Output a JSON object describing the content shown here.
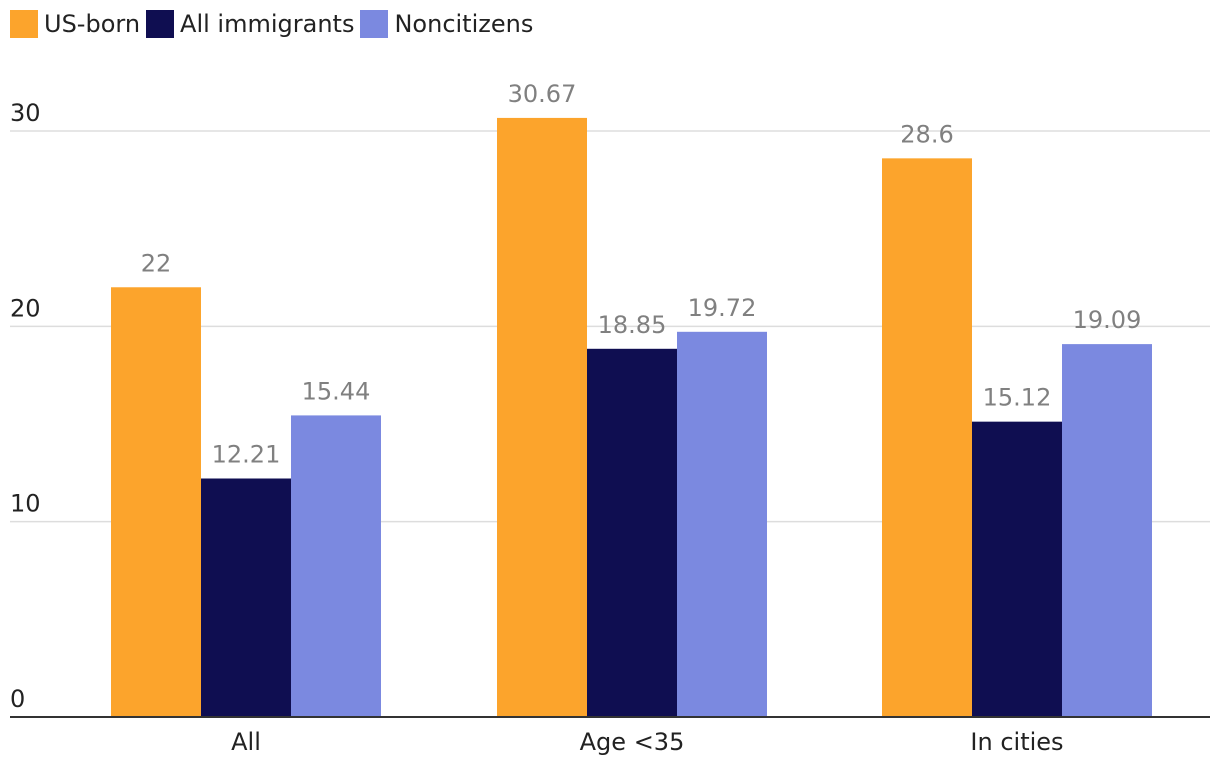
{
  "chart_data": {
    "type": "bar",
    "title": "",
    "xlabel": "",
    "ylabel": "",
    "categories": [
      "All",
      "Age <35",
      "In cities"
    ],
    "series": [
      {
        "name": "US-born",
        "color": "#fca42c",
        "values": [
          22,
          30.67,
          28.6
        ],
        "labels": [
          "22",
          "30.67",
          "28.6"
        ]
      },
      {
        "name": "All immigrants",
        "color": "#0f0e51",
        "values": [
          12.21,
          18.85,
          15.12
        ],
        "labels": [
          "12.21",
          "18.85",
          "15.12"
        ]
      },
      {
        "name": "Noncitizens",
        "color": "#7b89e0",
        "values": [
          15.44,
          19.72,
          19.09
        ],
        "labels": [
          "15.44",
          "19.72",
          "19.09"
        ]
      }
    ],
    "ylim": [
      0,
      30
    ],
    "yticks": [
      0,
      10,
      20,
      30
    ],
    "grid": true,
    "legend": "top-left"
  }
}
